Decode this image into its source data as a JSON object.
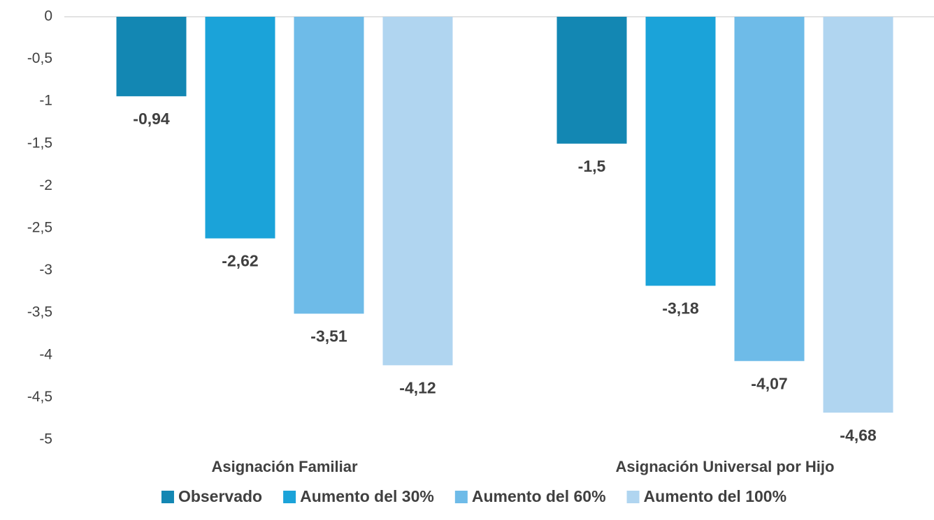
{
  "chart_data": {
    "type": "bar",
    "categories": [
      "Asignación Familiar",
      "Asignación Universal por Hijo"
    ],
    "series": [
      {
        "name": "Observado",
        "color": "#1387b3",
        "values": [
          -0.94,
          -1.5
        ],
        "value_labels": [
          "-0,94",
          "-1,5"
        ]
      },
      {
        "name": "Aumento del 30%",
        "color": "#1ba3d9",
        "values": [
          -2.62,
          -3.18
        ],
        "value_labels": [
          "-2,62",
          "-3,18"
        ]
      },
      {
        "name": "Aumento del 60%",
        "color": "#6ebbe8",
        "values": [
          -3.51,
          -4.07
        ],
        "value_labels": [
          "-3,51",
          "-4,07"
        ]
      },
      {
        "name": "Aumento del 100%",
        "color": "#b0d5f0",
        "values": [
          -4.12,
          -4.68
        ],
        "value_labels": [
          "-4,12",
          "-4,68"
        ]
      }
    ],
    "ylim": [
      -5,
      0
    ],
    "yticks": [
      0,
      {
        "value": -0.5,
        "label": "-0,5"
      },
      -1,
      {
        "value": -1.5,
        "label": "-1,5"
      },
      -2,
      {
        "value": -2.5,
        "label": "-2,5"
      },
      -3,
      {
        "value": -3.5,
        "label": "-3,5"
      },
      -4,
      {
        "value": -4.5,
        "label": "-4,5"
      },
      -5
    ],
    "grid": false,
    "legend": "bottom"
  }
}
